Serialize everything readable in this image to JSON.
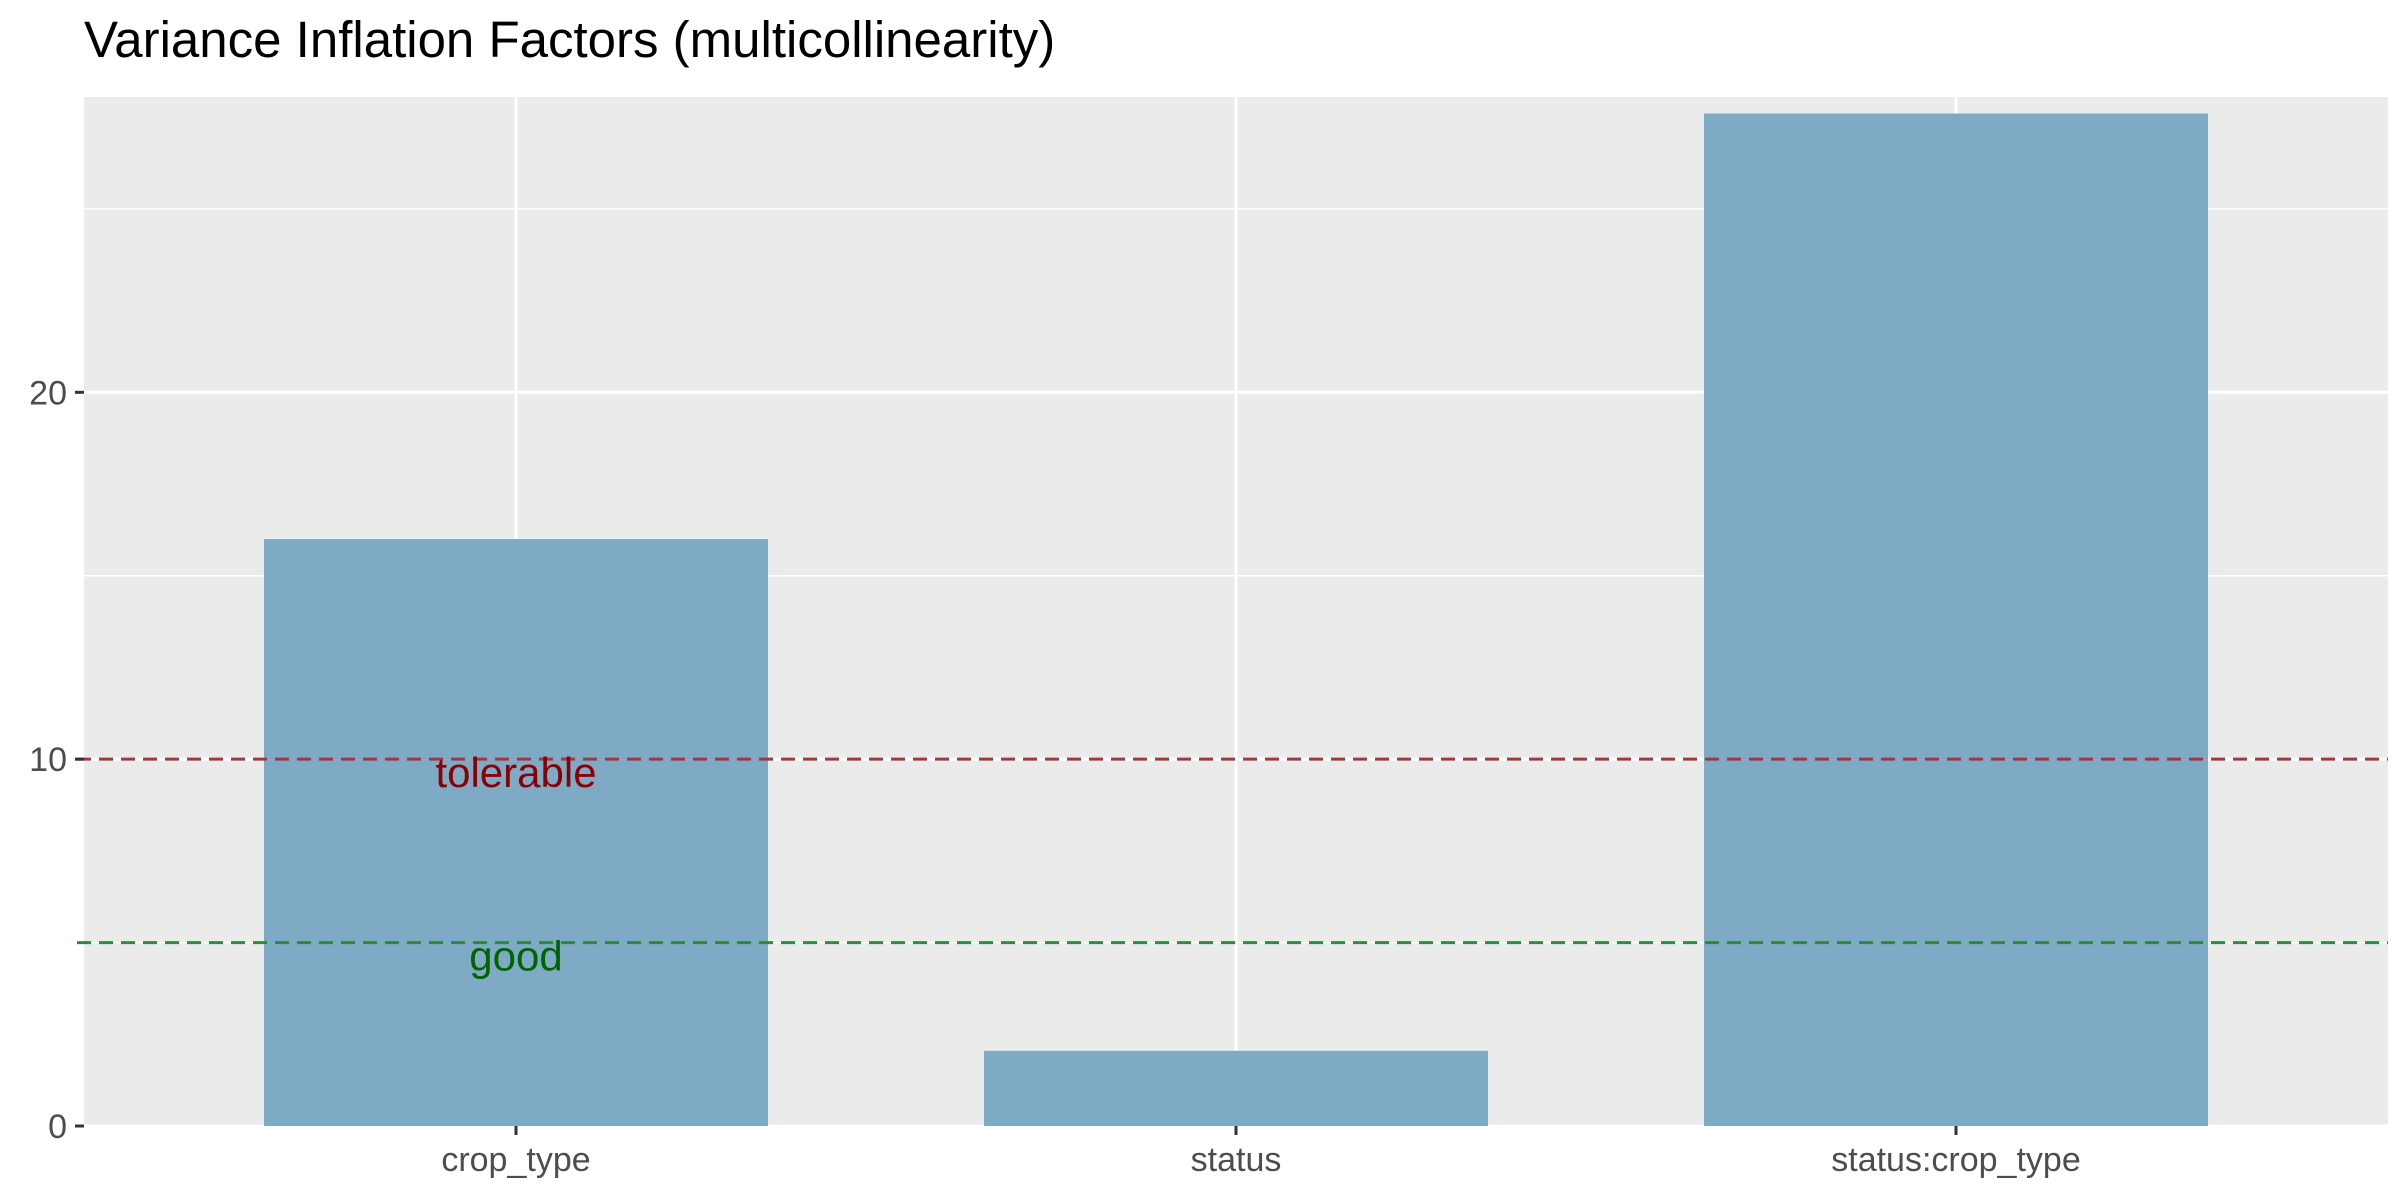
{
  "chart_data": {
    "type": "bar",
    "title": "Variance Inflation Factors (multicollinearity)",
    "xlabel": "",
    "ylabel": "",
    "categories": [
      "crop_type",
      "status",
      "status:crop_type"
    ],
    "values": [
      16.0,
      2.05,
      27.6
    ],
    "ylim": [
      0,
      28.05
    ],
    "yticks": [
      0,
      10,
      20
    ],
    "y_minor_gridlines": [
      5,
      15,
      25
    ],
    "grid": true,
    "legend": "none",
    "bar_color": "#7FAAC6",
    "panel_background": "#EBEBEB",
    "gridline_color": "#FFFFFF",
    "reference_lines": [
      {
        "y": 10,
        "label": "tolerable",
        "color": "#8B0000",
        "line_color": "#A0393D",
        "label_category": "crop_type"
      },
      {
        "y": 5,
        "label": "good",
        "color": "#006400",
        "line_color": "#2E8B3A",
        "label_category": "crop_type"
      }
    ]
  }
}
